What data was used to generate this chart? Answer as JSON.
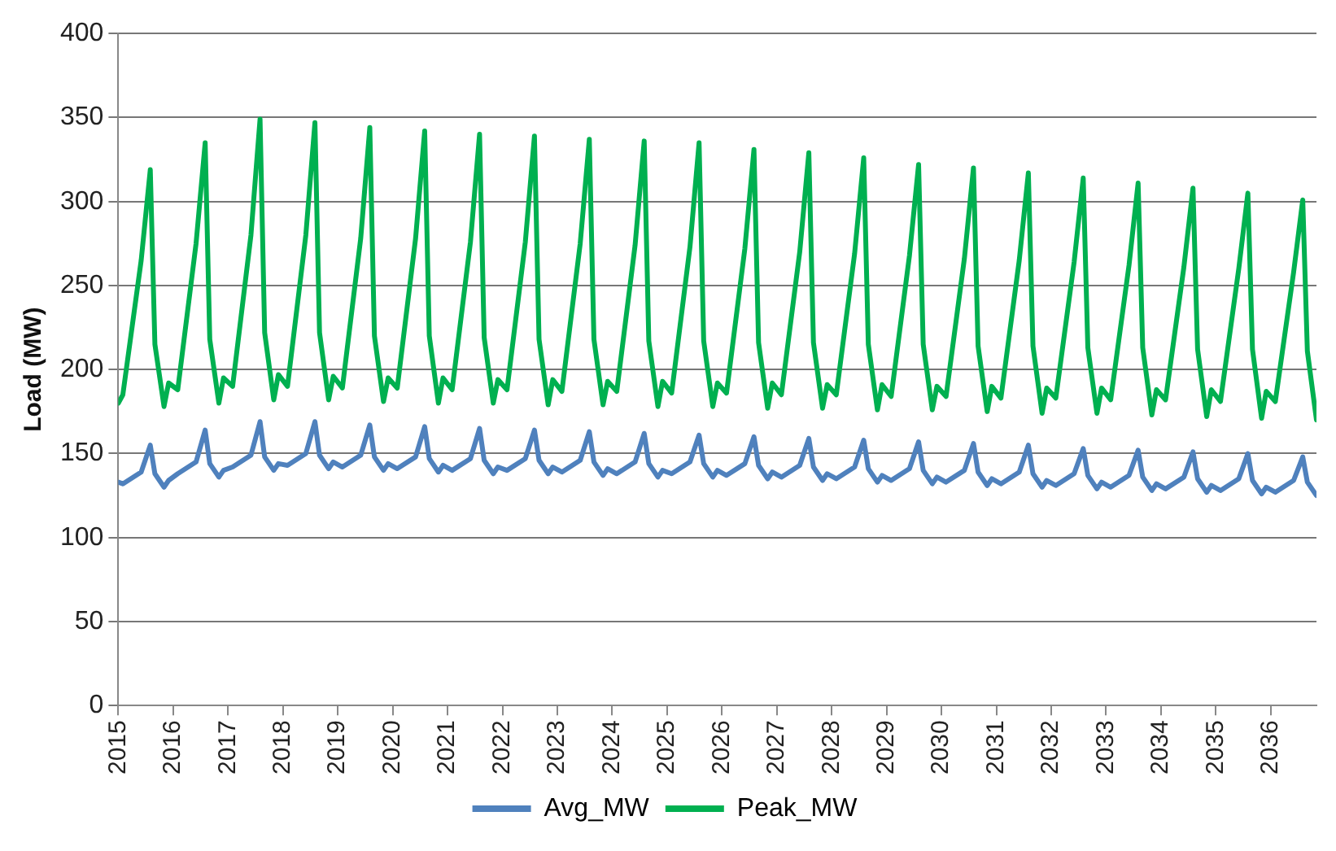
{
  "chart_data": {
    "type": "line",
    "ylabel": "Load (MW)",
    "x": [
      2015.0,
      2015.083,
      2015.417,
      2015.583,
      2015.667,
      2015.833,
      2015.917,
      2016.083,
      2016.417,
      2016.583,
      2016.667,
      2016.833,
      2016.917,
      2017.083,
      2017.417,
      2017.583,
      2017.667,
      2017.833,
      2017.917,
      2018.083,
      2018.417,
      2018.583,
      2018.667,
      2018.833,
      2018.917,
      2019.083,
      2019.417,
      2019.583,
      2019.667,
      2019.833,
      2019.917,
      2020.083,
      2020.417,
      2020.583,
      2020.667,
      2020.833,
      2020.917,
      2021.083,
      2021.417,
      2021.583,
      2021.667,
      2021.833,
      2021.917,
      2022.083,
      2022.417,
      2022.583,
      2022.667,
      2022.833,
      2022.917,
      2023.083,
      2023.417,
      2023.583,
      2023.667,
      2023.833,
      2023.917,
      2024.083,
      2024.417,
      2024.583,
      2024.667,
      2024.833,
      2024.917,
      2025.083,
      2025.417,
      2025.583,
      2025.667,
      2025.833,
      2025.917,
      2026.083,
      2026.417,
      2026.583,
      2026.667,
      2026.833,
      2026.917,
      2027.083,
      2027.417,
      2027.583,
      2027.667,
      2027.833,
      2027.917,
      2028.083,
      2028.417,
      2028.583,
      2028.667,
      2028.833,
      2028.917,
      2029.083,
      2029.417,
      2029.583,
      2029.667,
      2029.833,
      2029.917,
      2030.083,
      2030.417,
      2030.583,
      2030.667,
      2030.833,
      2030.917,
      2031.083,
      2031.417,
      2031.583,
      2031.667,
      2031.833,
      2031.917,
      2032.083,
      2032.417,
      2032.583,
      2032.667,
      2032.833,
      2032.917,
      2033.083,
      2033.417,
      2033.583,
      2033.667,
      2033.833,
      2033.917,
      2034.083,
      2034.417,
      2034.583,
      2034.667,
      2034.833,
      2034.917,
      2035.083,
      2035.417,
      2035.583,
      2035.667,
      2035.833,
      2035.917,
      2036.083,
      2036.417,
      2036.583,
      2036.667,
      2036.833
    ],
    "series": [
      {
        "name": "Avg_MW",
        "color": "#4f81bd",
        "values": [
          133,
          132,
          139,
          155,
          138,
          130,
          134,
          138,
          145,
          164,
          144,
          136,
          140,
          142,
          149,
          169,
          148,
          140,
          144,
          143,
          150,
          169,
          149,
          141,
          145,
          142,
          149,
          167,
          148,
          140,
          144,
          141,
          148,
          166,
          147,
          139,
          143,
          140,
          147,
          165,
          146,
          138,
          142,
          140,
          147,
          164,
          146,
          138,
          142,
          139,
          146,
          163,
          145,
          137,
          141,
          138,
          145,
          162,
          144,
          136,
          140,
          138,
          145,
          161,
          144,
          136,
          140,
          137,
          144,
          160,
          143,
          135,
          139,
          136,
          143,
          159,
          142,
          134,
          138,
          135,
          142,
          158,
          141,
          133,
          137,
          134,
          141,
          157,
          140,
          132,
          136,
          133,
          140,
          156,
          139,
          131,
          135,
          132,
          139,
          155,
          138,
          130,
          134,
          131,
          138,
          153,
          137,
          129,
          133,
          130,
          137,
          152,
          136,
          128,
          132,
          129,
          136,
          151,
          135,
          127,
          131,
          128,
          135,
          150,
          134,
          126,
          130,
          127,
          134,
          148,
          133,
          125
        ]
      },
      {
        "name": "Peak_MW",
        "color": "#00b050",
        "values": [
          180,
          185,
          265,
          319,
          215,
          178,
          192,
          188,
          275,
          335,
          218,
          180,
          195,
          190,
          280,
          349,
          222,
          182,
          197,
          190,
          280,
          347,
          222,
          182,
          196,
          189,
          278,
          344,
          220,
          181,
          195,
          189,
          278,
          342,
          220,
          180,
          195,
          188,
          276,
          340,
          219,
          180,
          194,
          188,
          276,
          339,
          218,
          179,
          194,
          187,
          275,
          337,
          218,
          179,
          193,
          187,
          274,
          336,
          217,
          178,
          193,
          186,
          273,
          335,
          217,
          178,
          192,
          186,
          272,
          331,
          216,
          177,
          192,
          185,
          270,
          329,
          216,
          177,
          191,
          185,
          269,
          326,
          215,
          176,
          191,
          184,
          268,
          322,
          215,
          176,
          190,
          184,
          266,
          320,
          214,
          175,
          190,
          183,
          265,
          317,
          214,
          174,
          189,
          183,
          264,
          314,
          213,
          174,
          189,
          182,
          262,
          311,
          213,
          173,
          188,
          182,
          261,
          308,
          212,
          172,
          188,
          181,
          260,
          305,
          212,
          171,
          187,
          181,
          258,
          301,
          211,
          170
        ]
      }
    ],
    "xlim": [
      2015,
      2036.833
    ],
    "xticks": [
      2015,
      2016,
      2017,
      2018,
      2019,
      2020,
      2021,
      2022,
      2023,
      2024,
      2025,
      2026,
      2027,
      2028,
      2029,
      2030,
      2031,
      2032,
      2033,
      2034,
      2035,
      2036
    ],
    "ylim": [
      0,
      400
    ],
    "yticks": [
      0,
      50,
      100,
      150,
      200,
      250,
      300,
      350,
      400
    ],
    "grid": "y",
    "legend": "bottom",
    "marker": "none",
    "line_style": "solid"
  }
}
